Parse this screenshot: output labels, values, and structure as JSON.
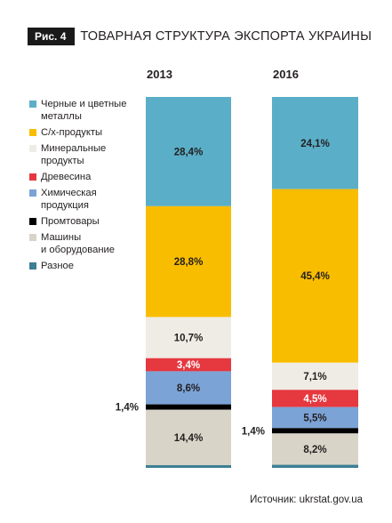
{
  "header": {
    "badge": "Рис. 4",
    "title": "ТОВАРНАЯ СТРУКТУРА ЭКСПОРТА УКРАИНЫ"
  },
  "source": "Источник: ukrstat.gov.ua",
  "chart_data": {
    "type": "bar",
    "stacked": true,
    "normalized_to_percent": true,
    "title": "ТОВАРНАЯ СТРУКТУРА ЭКСПОРТА УКРАИНЫ",
    "categories": [
      "2013",
      "2016"
    ],
    "series": [
      {
        "name": "Черные и цветные\nметаллы",
        "color": "#5aaec8",
        "values": [
          28.4,
          24.1
        ],
        "labels": [
          "28,4%",
          "24,1%"
        ]
      },
      {
        "name": "С/х-продукты",
        "color": "#f9bd00",
        "values": [
          28.8,
          45.4
        ],
        "labels": [
          "28,8%",
          "45,4%"
        ]
      },
      {
        "name": "Минеральные\nпродукты",
        "color": "#efece5",
        "values": [
          10.7,
          7.1
        ],
        "labels": [
          "10,7%",
          "7,1%"
        ]
      },
      {
        "name": "Древесина",
        "color": "#e5383f",
        "values": [
          3.4,
          4.5
        ],
        "labels": [
          "3,4%",
          "4,5%"
        ]
      },
      {
        "name": "Химическая\nпродукция",
        "color": "#7ba3d6",
        "values": [
          8.6,
          5.5
        ],
        "labels": [
          "8,6%",
          "5,5%"
        ]
      },
      {
        "name": "Промтовары",
        "color": "#000000",
        "values": [
          1.4,
          1.4
        ],
        "labels": [
          "1,4%",
          "1,4%"
        ]
      },
      {
        "name": "Машины\nи оборудование",
        "color": "#d9d4c8",
        "values": [
          14.4,
          8.2
        ],
        "labels": [
          "14,4%",
          "8,2%"
        ]
      },
      {
        "name": "Разное",
        "color": "#3d7f93",
        "values": [
          0.7,
          0.8
        ],
        "labels": [
          "",
          ""
        ]
      }
    ],
    "legend": "left",
    "grid": false
  }
}
